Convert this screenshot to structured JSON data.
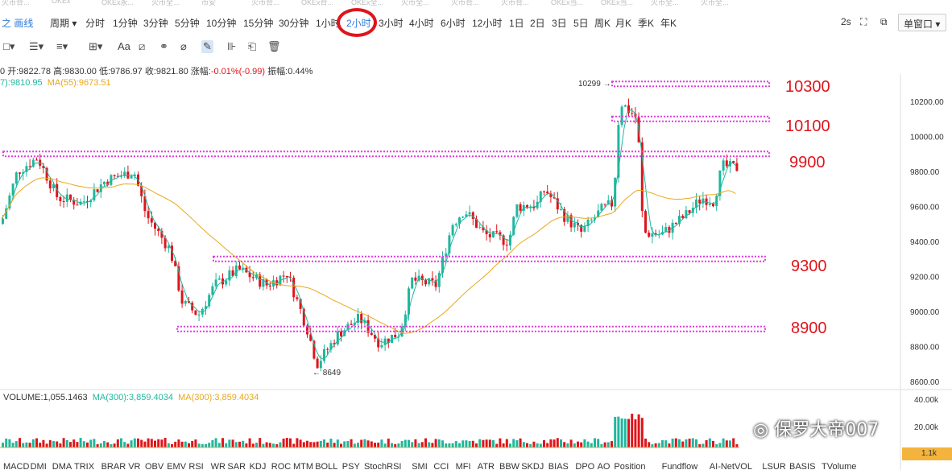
{
  "tabs": [
    "火币合...",
    "OKEx",
    "OKEx永...",
    "火币全...",
    "币安",
    "火币合...",
    "OKEx合...",
    "OKEx全...",
    "火币全...",
    "火币合...",
    "火币合...",
    "OKEx当...",
    "OKEx当...",
    "火币全...",
    "火币全..."
  ],
  "toolbar": {
    "draw_label": "画线",
    "period_label": "周期",
    "intervals": [
      "分时",
      "1分钟",
      "3分钟",
      "5分钟",
      "10分钟",
      "15分钟",
      "30分钟",
      "1小时",
      "2小时",
      "3小时",
      "4小时",
      "6小时",
      "12小时",
      "1日",
      "2日",
      "3日",
      "5日",
      "周K",
      "月K",
      "季K",
      "年K"
    ],
    "active_interval": "2小时",
    "refresh": "2s",
    "window_select": "单窗口"
  },
  "tools": [
    "rect-icon",
    "list-icon",
    "menu-icon",
    "crosshair-icon",
    "Aa",
    "magnet-icon",
    "ruler-icon",
    "pen-icon",
    "measure-icon",
    "lock-icon",
    "trash-icon"
  ],
  "ohlc": {
    "prefix": "0",
    "open_label": "开:",
    "open": "9822.78",
    "high_label": "高:",
    "high": "9830.00",
    "low_label": "低:",
    "low": "9786.97",
    "close_label": "收:",
    "close": "9821.80",
    "change_label": "涨幅:",
    "change": "-0.01%(-0.99)",
    "amplitude_label": "振幅:",
    "amplitude": "0.44%"
  },
  "ma": {
    "ma1": "7):9810.95",
    "ma2": "MA(55):9673.51"
  },
  "volume": {
    "label": "VOLUME:1,055.1463",
    "ma1": "MA(300):3,859.4034",
    "ma2": "MA(300):3,859.4034",
    "tag": "1.1k"
  },
  "chart_data": {
    "type": "candlestick",
    "y_ticks": [
      "10200.00",
      "10000.00",
      "9800.00",
      "9600.00",
      "9400.00",
      "9200.00",
      "9000.00",
      "8800.00",
      "8600.00"
    ],
    "vol_ticks": [
      "40.00k",
      "20.00k"
    ],
    "levels": [
      {
        "label": "10300",
        "value": 10300
      },
      {
        "label": "10100",
        "value": 10100
      },
      {
        "label": "9900",
        "value": 9900
      },
      {
        "label": "9300",
        "value": 9300
      },
      {
        "label": "8900",
        "value": 8900
      }
    ],
    "high_marker": "10299",
    "low_marker": "8649",
    "colors": {
      "up": "#20b79e",
      "down": "#e0141b",
      "ma_short": "#20b79e",
      "ma_long": "#e9a81b",
      "level": "#e03ce0"
    }
  },
  "indicators": [
    "MACD",
    "DMI",
    "DMA",
    "TRIX",
    "BRAR",
    "VR",
    "OBV",
    "EMV",
    "RSI",
    "WR",
    "SAR",
    "KDJ",
    "ROC",
    "MTM",
    "BOLL",
    "PSY",
    "StochRSI",
    "SMI",
    "CCI",
    "MFI",
    "ATR",
    "BBW",
    "SKDJ",
    "BIAS",
    "DPO",
    "AO",
    "Position",
    "Fundflow",
    "AI-NetVOL",
    "LSUR",
    "BASIS",
    "TVolume"
  ],
  "watermark": "保罗大帝007"
}
